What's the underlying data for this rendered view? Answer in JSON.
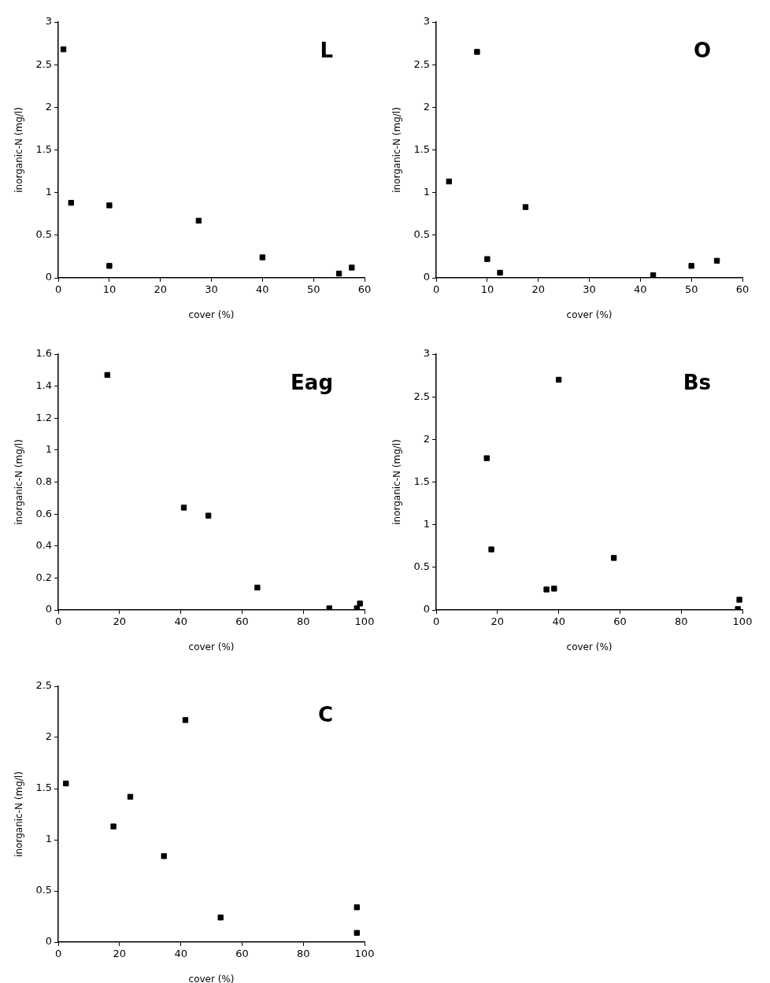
{
  "chart_data": [
    {
      "type": "scatter",
      "title": "L",
      "xlabel": "cover (%)",
      "ylabel": "inorganic-N (mg/l)",
      "x": [
        1,
        2.5,
        10,
        10,
        27.5,
        40,
        55,
        57.5
      ],
      "values": [
        2.68,
        0.88,
        0.85,
        0.14,
        0.67,
        0.24,
        0.05,
        0.12
      ],
      "color": "#000000",
      "marker": "square",
      "xlim": [
        0,
        60
      ],
      "xticks": [
        0,
        10,
        20,
        30,
        40,
        50,
        60
      ],
      "ylim": [
        0,
        3
      ],
      "yticks": [
        0,
        0.5,
        1,
        1.5,
        2,
        2.5,
        3
      ],
      "grid": false
    },
    {
      "type": "scatter",
      "title": "O",
      "xlabel": "cover (%)",
      "ylabel": "inorganic-N (mg/l)",
      "x": [
        2.5,
        8,
        10,
        12.5,
        17.5,
        42.5,
        50,
        55
      ],
      "values": [
        1.13,
        2.65,
        0.22,
        0.06,
        0.83,
        0.03,
        0.14,
        0.2
      ],
      "color": "#000000",
      "marker": "square",
      "xlim": [
        0,
        60
      ],
      "xticks": [
        0,
        10,
        20,
        30,
        40,
        50,
        60
      ],
      "ylim": [
        0,
        3
      ],
      "yticks": [
        0,
        0.5,
        1,
        1.5,
        2,
        2.5,
        3
      ],
      "grid": false
    },
    {
      "type": "scatter",
      "title": "Eag",
      "xlabel": "cover (%)",
      "ylabel": "inorganic-N (mg/l)",
      "x": [
        16,
        41,
        49,
        65,
        88.5,
        97.5,
        98.5
      ],
      "values": [
        1.47,
        0.64,
        0.59,
        0.14,
        0.01,
        0.01,
        0.04
      ],
      "color": "#000000",
      "marker": "square",
      "xlim": [
        0,
        100
      ],
      "xticks": [
        0,
        20,
        40,
        60,
        80,
        100
      ],
      "ylim": [
        0,
        1.6
      ],
      "yticks": [
        0,
        0.2,
        0.4,
        0.6,
        0.8,
        1,
        1.2,
        1.4,
        1.6
      ],
      "grid": false
    },
    {
      "type": "scatter",
      "title": "Bs",
      "xlabel": "cover (%)",
      "ylabel": "inorganic-N (mg/l)",
      "x": [
        16.5,
        18,
        36,
        38.5,
        40,
        58,
        99,
        98.5
      ],
      "values": [
        1.78,
        0.71,
        0.24,
        0.25,
        2.7,
        0.61,
        0.12,
        0.01
      ],
      "color": "#000000",
      "marker": "square",
      "xlim": [
        0,
        100
      ],
      "xticks": [
        0,
        20,
        40,
        60,
        80,
        100
      ],
      "ylim": [
        0,
        3
      ],
      "yticks": [
        0,
        0.5,
        1,
        1.5,
        2,
        2.5,
        3
      ],
      "grid": false
    },
    {
      "type": "scatter",
      "title": "C",
      "xlabel": "cover (%)",
      "ylabel": "inorganic-N (mg/l)",
      "x": [
        2.5,
        18,
        23.5,
        34.5,
        41.5,
        53,
        97.5,
        97.5
      ],
      "values": [
        1.55,
        1.13,
        1.42,
        0.84,
        2.17,
        0.24,
        0.34,
        0.09
      ],
      "color": "#000000",
      "marker": "square",
      "xlim": [
        0,
        100
      ],
      "xticks": [
        0,
        20,
        40,
        60,
        80,
        100
      ],
      "ylim": [
        0,
        2.5
      ],
      "yticks": [
        0,
        0.5,
        1,
        1.5,
        2,
        2.5
      ],
      "grid": false
    }
  ]
}
